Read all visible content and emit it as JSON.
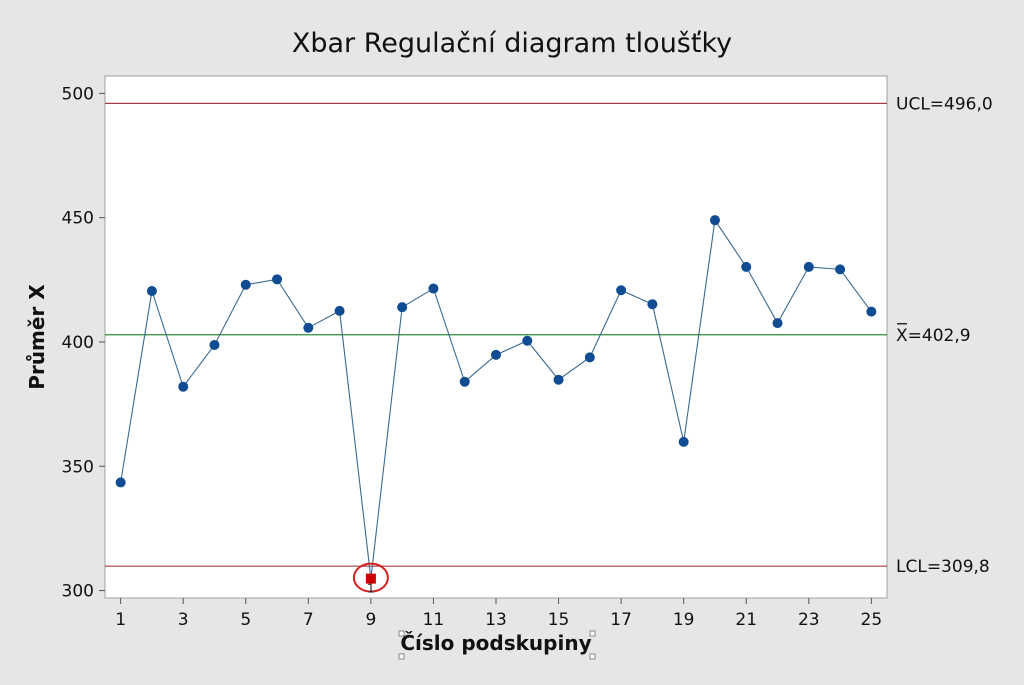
{
  "chart_data": {
    "type": "line",
    "title": "Xbar Regulační diagram tloušťky",
    "xlabel": "Číslo podskupiny",
    "ylabel": "Průměr X",
    "x": [
      1,
      2,
      3,
      4,
      5,
      6,
      7,
      8,
      9,
      10,
      11,
      12,
      13,
      14,
      15,
      16,
      17,
      18,
      19,
      20,
      21,
      22,
      23,
      24,
      25
    ],
    "x_tick_labels": [
      "1",
      "3",
      "5",
      "7",
      "9",
      "11",
      "13",
      "15",
      "17",
      "19",
      "21",
      "23",
      "25"
    ],
    "x_tick_values": [
      1,
      3,
      5,
      7,
      9,
      11,
      13,
      15,
      17,
      19,
      21,
      23,
      25
    ],
    "y_tick_labels": [
      "300",
      "350",
      "400",
      "450",
      "500"
    ],
    "y_tick_values": [
      300,
      350,
      400,
      450,
      500
    ],
    "xlim": [
      0.5,
      25.5
    ],
    "ylim": [
      297,
      507
    ],
    "grid": false,
    "series": [
      {
        "values": [
          343.5,
          420.5,
          382,
          398.8,
          423,
          425.2,
          405.7,
          412.5,
          304.8,
          414,
          421.5,
          384,
          394.8,
          400.5,
          384.8,
          393.8,
          420.8,
          415.2,
          359.8,
          449,
          430.2,
          407.6,
          430.2,
          429.2,
          412.2
        ],
        "color": "#0f4c92",
        "line_color": "#3b6a8f"
      }
    ],
    "control_lines": [
      {
        "label": "UCL=496,0",
        "value": 496.0,
        "color": "#a63d40"
      },
      {
        "label": "X=402,9",
        "value": 402.9,
        "color": "#2e8b3a",
        "overbar": true
      },
      {
        "label": "LCL=309,8",
        "value": 309.8,
        "color": "#a63d40"
      }
    ],
    "out_of_control": [
      {
        "x": 9,
        "flag": "1",
        "marker_color": "#cc0000",
        "ring_color": "#d42020"
      }
    ]
  },
  "colors": {
    "background": "#e6e6e6",
    "plot_area": "#ffffff",
    "frame": "#a0a0a0"
  }
}
